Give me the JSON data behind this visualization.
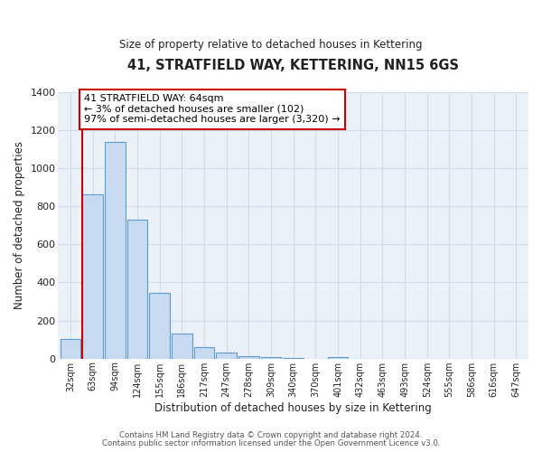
{
  "title": "41, STRATFIELD WAY, KETTERING, NN15 6GS",
  "subtitle": "Size of property relative to detached houses in Kettering",
  "xlabel": "Distribution of detached houses by size in Kettering",
  "ylabel": "Number of detached properties",
  "bar_labels": [
    "32sqm",
    "63sqm",
    "94sqm",
    "124sqm",
    "155sqm",
    "186sqm",
    "217sqm",
    "247sqm",
    "278sqm",
    "309sqm",
    "340sqm",
    "370sqm",
    "401sqm",
    "432sqm",
    "463sqm",
    "493sqm",
    "524sqm",
    "555sqm",
    "586sqm",
    "616sqm",
    "647sqm"
  ],
  "bar_values": [
    105,
    865,
    1140,
    730,
    345,
    130,
    60,
    30,
    15,
    10,
    5,
    0,
    8,
    0,
    0,
    0,
    0,
    0,
    0,
    0,
    0
  ],
  "bar_color": "#c8daf0",
  "bar_edge_color": "#5b9bd5",
  "grid_color": "#d0dce8",
  "background_color": "#eaf1f8",
  "vline_color": "#cc0000",
  "annotation_title": "41 STRATFIELD WAY: 64sqm",
  "annotation_line1": "← 3% of detached houses are smaller (102)",
  "annotation_line2": "97% of semi-detached houses are larger (3,320) →",
  "annotation_box_color": "#cc0000",
  "ylim": [
    0,
    1400
  ],
  "yticks": [
    0,
    200,
    400,
    600,
    800,
    1000,
    1200,
    1400
  ],
  "footer1": "Contains HM Land Registry data © Crown copyright and database right 2024.",
  "footer2": "Contains public sector information licensed under the Open Government Licence v3.0."
}
